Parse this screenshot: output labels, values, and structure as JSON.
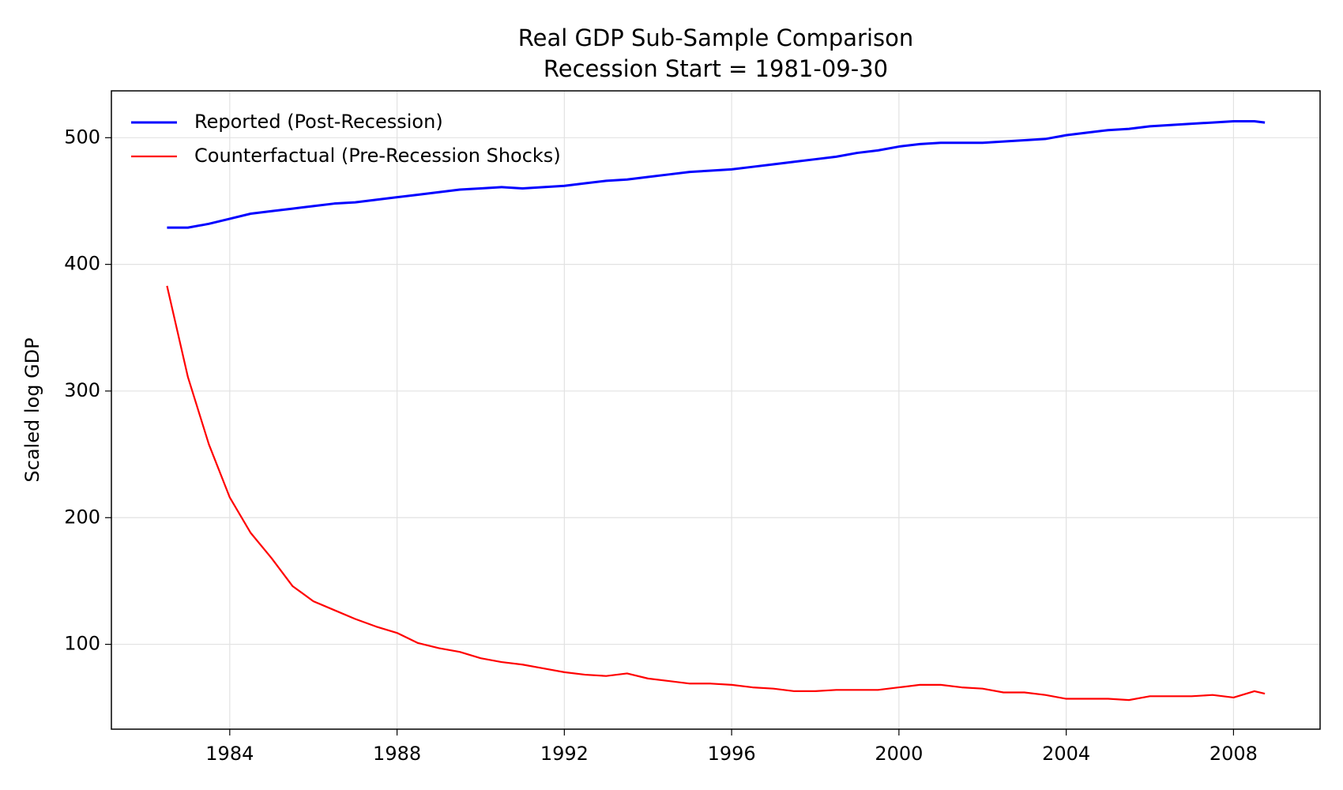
{
  "chart_data": {
    "type": "line",
    "title": "Real GDP Sub-Sample Comparison",
    "subtitle": "Recession Start = 1981-09-30",
    "y_label": "Scaled log GDP",
    "x": [
      1982.5,
      1983,
      1983.5,
      1984,
      1984.5,
      1985,
      1985.5,
      1986,
      1986.5,
      1987,
      1987.5,
      1988,
      1988.5,
      1989,
      1989.5,
      1990,
      1990.5,
      1991,
      1991.5,
      1992,
      1992.5,
      1993,
      1993.5,
      1994,
      1994.5,
      1995,
      1995.5,
      1996,
      1996.5,
      1997,
      1997.5,
      1998,
      1998.5,
      1999,
      1999.5,
      2000,
      2000.5,
      2001,
      2001.5,
      2002,
      2002.5,
      2003,
      2003.5,
      2004,
      2004.5,
      2005,
      2005.5,
      2006,
      2006.5,
      2007,
      2007.5,
      2008,
      2008.5,
      2008.75
    ],
    "series": [
      {
        "name": "Reported (Post-Recession)",
        "color": "#0000ff",
        "width": 3,
        "values": [
          429,
          429,
          432,
          436,
          440,
          442,
          444,
          446,
          448,
          449,
          451,
          453,
          455,
          457,
          459,
          460,
          461,
          460,
          461,
          462,
          464,
          466,
          467,
          469,
          471,
          473,
          474,
          475,
          477,
          479,
          481,
          483,
          485,
          488,
          490,
          493,
          495,
          496,
          496,
          496,
          497,
          498,
          499,
          502,
          504,
          506,
          507,
          509,
          510,
          511,
          512,
          513,
          513,
          512
        ]
      },
      {
        "name": "Counterfactual (Pre-Recession Shocks)",
        "color": "#ff0000",
        "width": 2.2,
        "values": [
          383,
          311,
          258,
          216,
          188,
          168,
          146,
          134,
          127,
          120,
          114,
          109,
          101,
          97,
          94,
          89,
          86,
          84,
          81,
          78,
          76,
          75,
          77,
          73,
          71,
          69,
          69,
          68,
          66,
          65,
          63,
          63,
          64,
          64,
          64,
          66,
          68,
          68,
          66,
          65,
          62,
          62,
          60,
          57,
          57,
          57,
          56,
          59,
          59,
          59,
          60,
          58,
          63,
          61
        ]
      }
    ],
    "xlim": [
      1981.17,
      2010.07
    ],
    "xticks": [
      1984,
      1988,
      1992,
      1996,
      2000,
      2004,
      2008
    ],
    "ylim": [
      33,
      537
    ],
    "yticks": [
      100,
      200,
      300,
      400,
      500
    ],
    "grid": true,
    "legend": "upper-left"
  }
}
